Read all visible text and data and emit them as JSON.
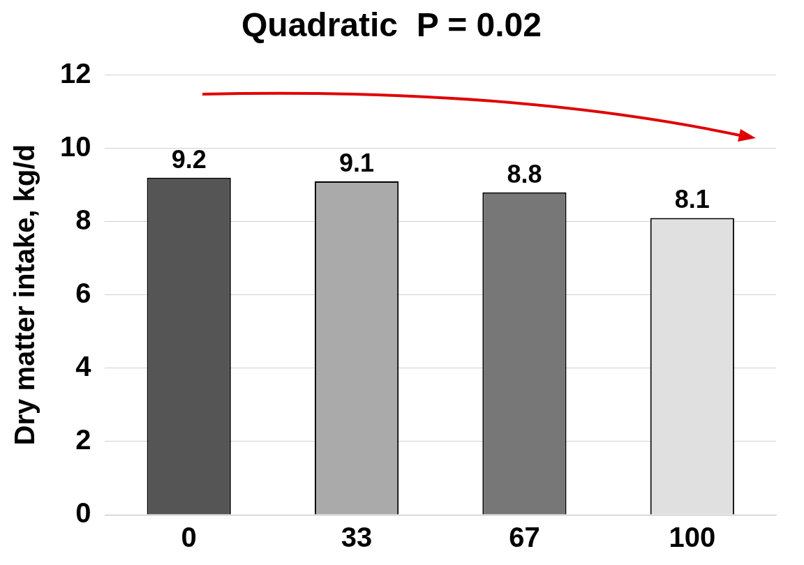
{
  "chart_data": {
    "type": "bar",
    "title": "Quadratic  P = 0.02",
    "ylabel": "Dry matter intake, kg/d",
    "categories": [
      "0",
      "33",
      "67",
      "100"
    ],
    "values": [
      9.2,
      9.1,
      8.8,
      8.1
    ],
    "colors": [
      "#555555",
      "#aaaaaa",
      "#777777",
      "#e0e0e0"
    ],
    "ylim": [
      0,
      12
    ],
    "yticks": [
      0,
      2,
      4,
      6,
      8,
      10,
      12
    ],
    "grid": "y",
    "data_labels": true,
    "legend": false
  }
}
